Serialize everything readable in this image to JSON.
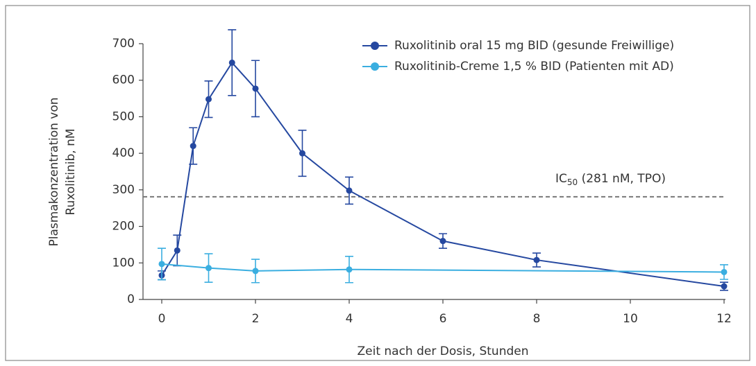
{
  "chart_data": {
    "type": "line",
    "y_label": [
      "Plasmakonzentration von",
      "Ruxolitinib, nM"
    ],
    "x_label": "Zeit nach der Dosis, Stunden",
    "xlim": [
      -0.4,
      12
    ],
    "xticks": [
      0,
      2,
      4,
      6,
      8,
      10,
      12
    ],
    "ylim": [
      0,
      700
    ],
    "yticks": [
      0,
      100,
      200,
      300,
      400,
      500,
      600,
      700
    ],
    "legend": "upper right",
    "reference_line": {
      "value": 281,
      "color": "#777",
      "label": [
        "IC",
        "50",
        " (281 nM, TPO)"
      ]
    },
    "series": [
      {
        "name": "Ruxolitinib oral 15 mg BID (gesunde Freiwillige)",
        "color": "#2548a0",
        "x": [
          0,
          0.33,
          0.67,
          1,
          1.5,
          2,
          3,
          4,
          6,
          8,
          12
        ],
        "values": [
          66,
          134,
          420,
          548,
          648,
          577,
          400,
          298,
          160,
          108,
          36
        ],
        "errors": [
          12,
          42,
          50,
          50,
          90,
          77,
          63,
          37,
          20,
          19,
          11
        ]
      },
      {
        "name": "Ruxolitinib-Creme 1,5 % BID (Patienten mit AD)",
        "color": "#3aaee0",
        "x": [
          0,
          1,
          2,
          4,
          12
        ],
        "values": [
          97,
          86,
          78,
          82,
          75
        ],
        "errors": [
          43,
          39,
          32,
          36,
          20
        ]
      }
    ]
  }
}
